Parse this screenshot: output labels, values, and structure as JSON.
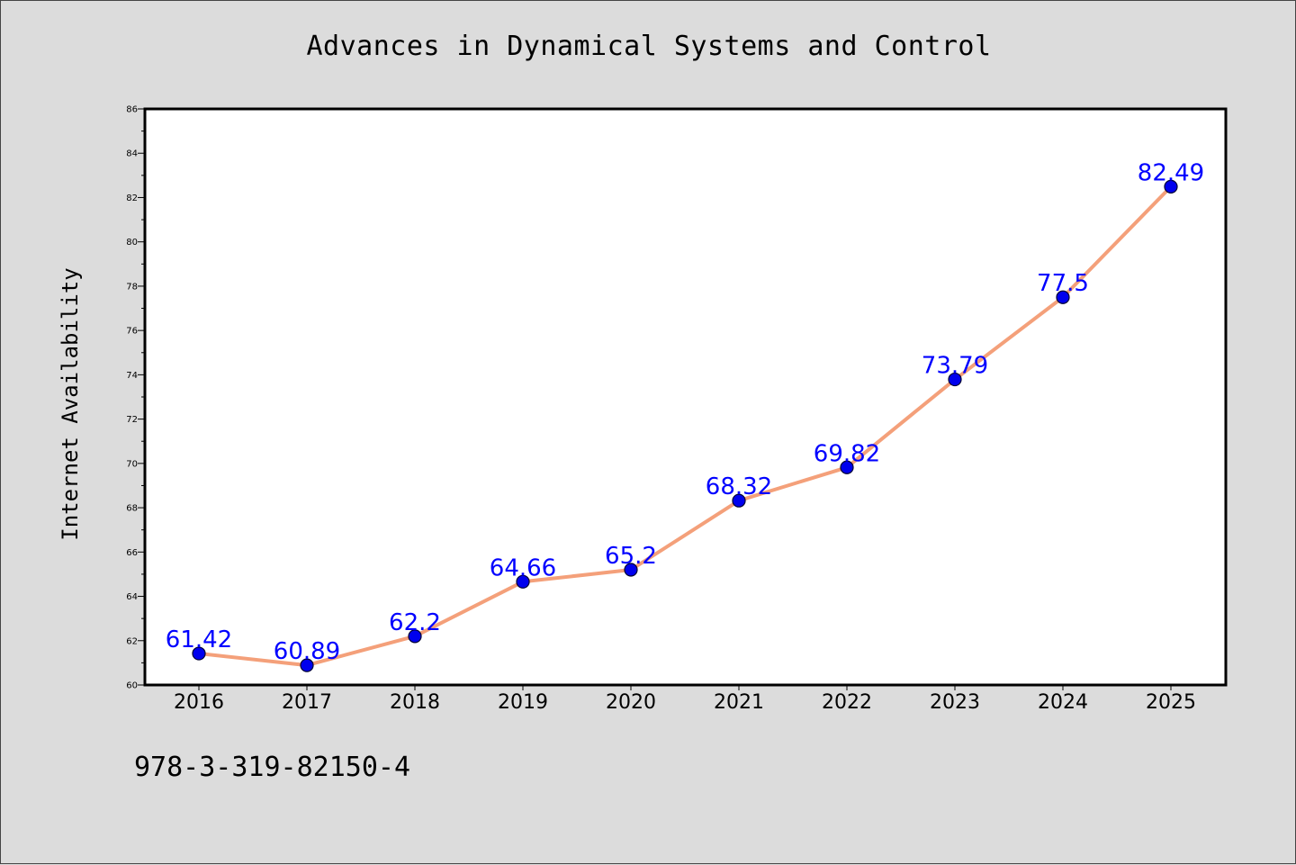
{
  "figure": {
    "title": "Advances in Dynamical Systems and Control",
    "footer_code": "978-3-319-82150-4"
  },
  "chart_data": {
    "type": "line",
    "title": "Advances in Dynamical Systems and Control",
    "xlabel": "",
    "ylabel": "Internet Availability",
    "categories": [
      "2016",
      "2017",
      "2018",
      "2019",
      "2020",
      "2021",
      "2022",
      "2023",
      "2024",
      "2025"
    ],
    "series": [
      {
        "name": "",
        "values": [
          61.42,
          60.89,
          62.2,
          64.66,
          65.2,
          68.32,
          69.82,
          73.79,
          77.5,
          82.49
        ],
        "labels": [
          "61.42",
          "60.89",
          "62.2",
          "64.66",
          "65.2",
          "68.32",
          "69.82",
          "73.79",
          "77.5",
          "82.49"
        ]
      }
    ],
    "ylim": [
      60,
      86
    ],
    "yticks": [
      60,
      62,
      64,
      66,
      68,
      70,
      72,
      74,
      76,
      78,
      80,
      82,
      84,
      86
    ],
    "grid": false,
    "legend": "none",
    "colors": {
      "line": "#f4a07a",
      "marker_fill": "#0000ee",
      "marker_edge": "#000033",
      "data_label": "#0000ff",
      "plot_bg": "#ffffff",
      "figure_bg": "#dcdcdc"
    }
  }
}
